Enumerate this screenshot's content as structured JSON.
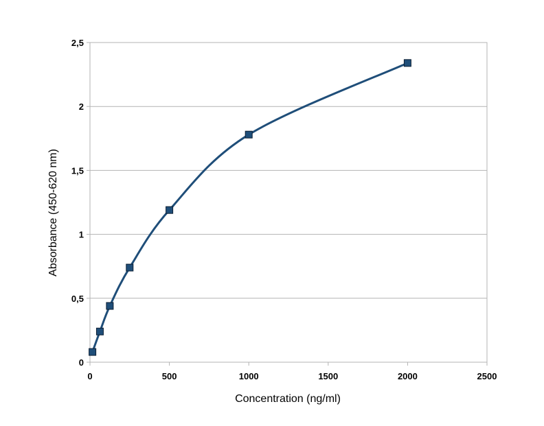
{
  "chart_data": {
    "type": "scatter",
    "title": "",
    "xlabel": "Concentration (ng/ml)",
    "ylabel": "Absorbance (450-620 nm)",
    "xlim": [
      0,
      2500
    ],
    "ylim": [
      0,
      2.5
    ],
    "x_ticks": [
      "0",
      "500",
      "1000",
      "1500",
      "2000",
      "2500"
    ],
    "y_ticks": [
      "0",
      "0,5",
      "1",
      "1,5",
      "2",
      "2,5"
    ],
    "grid": "horizontal",
    "legend": "none",
    "series": [
      {
        "x": [
          15.6,
          62.5,
          125,
          250,
          500,
          1000,
          2000
        ],
        "y": [
          0.08,
          0.24,
          0.44,
          0.74,
          1.19,
          1.78,
          2.34
        ],
        "marker": "square",
        "line": "smooth",
        "color": "#1f4e79"
      }
    ]
  }
}
